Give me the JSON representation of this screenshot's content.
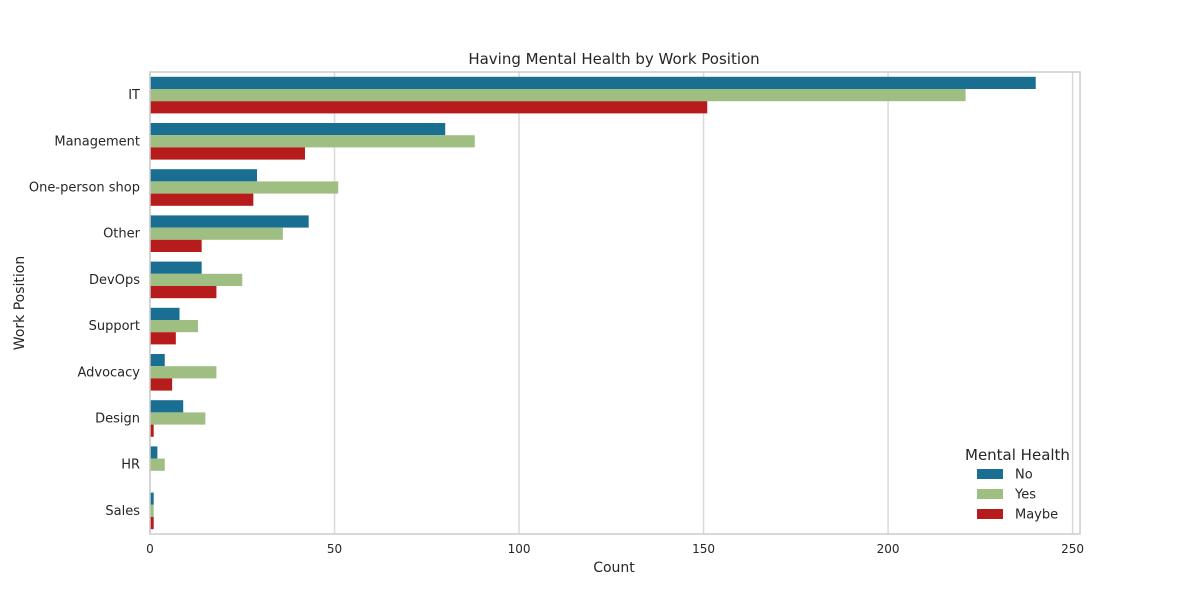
{
  "chart_data": {
    "type": "bar",
    "orientation": "horizontal",
    "title": "Having Mental Health by Work Position",
    "xlabel": "Count",
    "ylabel": "Work Position",
    "xlim": [
      0,
      250
    ],
    "xticks": [
      0,
      50,
      100,
      150,
      200,
      250
    ],
    "grid": true,
    "categories": [
      "IT",
      "Management",
      "One-person shop",
      "Other",
      "DevOps",
      "Support",
      "Advocacy",
      "Design",
      "HR",
      "Sales"
    ],
    "series": [
      {
        "name": "No",
        "color": "#1a6e91",
        "values": [
          240,
          80,
          29,
          43,
          14,
          8,
          4,
          9,
          2,
          1
        ]
      },
      {
        "name": "Yes",
        "color": "#9ebe82",
        "values": [
          221,
          88,
          51,
          36,
          25,
          13,
          18,
          15,
          4,
          1
        ]
      },
      {
        "name": "Maybe",
        "color": "#b71c1c",
        "values": [
          151,
          42,
          28,
          14,
          18,
          7,
          6,
          1,
          0,
          1
        ]
      }
    ],
    "legend": {
      "title": "Mental Health",
      "placement": "lower-right"
    }
  }
}
